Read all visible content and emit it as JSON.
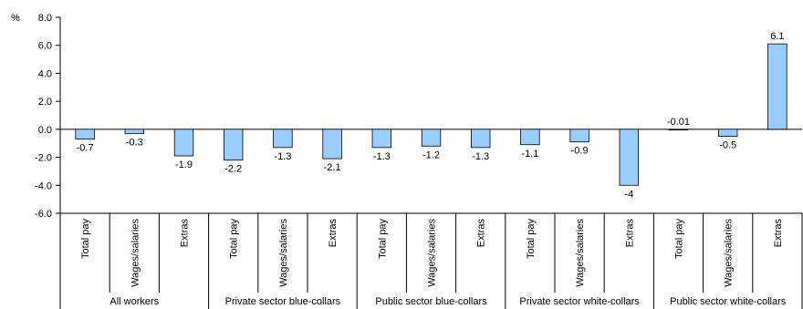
{
  "chart_data": {
    "type": "bar",
    "title": "",
    "xlabel": "",
    "ylabel": "",
    "unit_label": "%",
    "ylim": [
      -6,
      8
    ],
    "yticks": [
      "8.0",
      "6.0",
      "4.0",
      "2.0",
      "0.0",
      "-2.0",
      "-4.0",
      "-6.0"
    ],
    "grid": false,
    "bar_color": "#99ccff",
    "groups": [
      {
        "name": "All workers",
        "categories": [
          "Total pay",
          "Wages/salaries",
          "Extras"
        ],
        "values": [
          -0.7,
          -0.3,
          -1.9
        ],
        "labels": [
          "-0.7",
          "-0.3",
          "-1.9"
        ]
      },
      {
        "name": "Private sector blue-collars",
        "categories": [
          "Total pay",
          "Wages/salaries",
          "Extras"
        ],
        "values": [
          -2.2,
          -1.3,
          -2.1
        ],
        "labels": [
          "-2.2",
          "-1.3",
          "-2.1"
        ]
      },
      {
        "name": "Public sector blue-collars",
        "categories": [
          "Total pay",
          "Wages/salaries",
          "Extras"
        ],
        "values": [
          -1.3,
          -1.2,
          -1.3
        ],
        "labels": [
          "-1.3",
          "-1.2",
          "-1.3"
        ]
      },
      {
        "name": "Private sector white-collars",
        "categories": [
          "Total pay",
          "Wages/salaries",
          "Extras"
        ],
        "values": [
          -1.1,
          -0.9,
          -4
        ],
        "labels": [
          "-1.1",
          "-0.9",
          "-4"
        ]
      },
      {
        "name": "Public sector white-collars",
        "categories": [
          "Total pay",
          "Wages/salaries",
          "Extras"
        ],
        "values": [
          -0.01,
          -0.5,
          6.1
        ],
        "labels": [
          "-0.01",
          "-0.5",
          "6.1"
        ]
      }
    ]
  }
}
